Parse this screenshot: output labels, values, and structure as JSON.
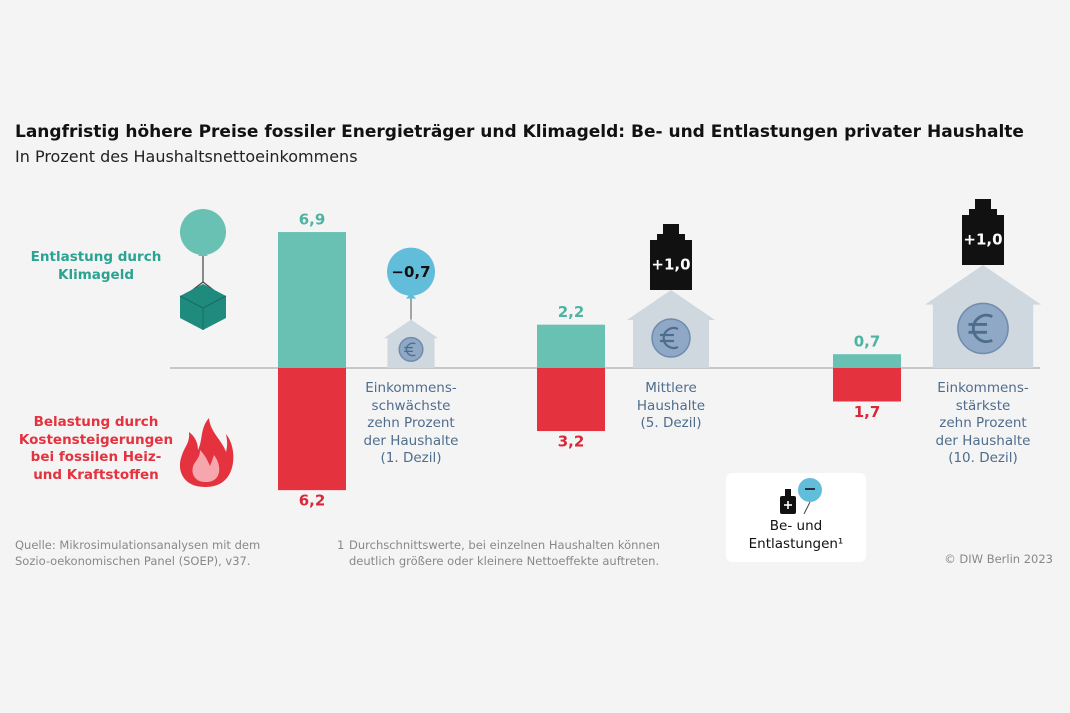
{
  "chart_data": {
    "type": "bar",
    "title": "Langfristig höhere Preise fossiler Energieträger und Klimageld: Be- und Entlastungen privater Haushalte",
    "subtitle": "In Prozent des Haushaltsnettoeinkommens",
    "categories": [
      "Einkommens-\nschwächste\nzehn Prozent\nder Haushalte\n(1. Dezil)",
      "Mittlere\nHaushalte\n(5. Dezil)",
      "Einkommens-\nstärkste\nzehn Prozent\nder Haushalte\n(10. Dezil)"
    ],
    "series": [
      {
        "name": "Entlastung durch\nKlimageld",
        "color": "#68c1b2",
        "values": [
          6.9,
          2.2,
          0.7
        ],
        "value_labels": [
          "6,9",
          "2,2",
          "0,7"
        ]
      },
      {
        "name": "Belastung durch\nKostensteigerungen\nbei fossilen Heiz-\nund Kraftstoffen",
        "color": "#e4323f",
        "values": [
          6.2,
          3.2,
          1.7
        ],
        "value_labels": [
          "6,2",
          "3,2",
          "1,7"
        ]
      }
    ],
    "net": {
      "name": "Be- und\nEntlastungen¹",
      "values": [
        -0.7,
        1.0,
        1.0
      ],
      "value_labels": [
        "−0,7",
        "+1,0",
        "+1,0"
      ]
    },
    "source": "Quelle: Mikrosimulationsanalysen mit dem\nSozio-oekonomischen Panel (SOEP), v37.",
    "footnote": {
      "marker": "1",
      "text": "Durchschnittswerte, bei einzelnen Haushalten können\ndeutlich größere oder kleinere Nettoeffekte auftreten."
    },
    "copyright": "© DIW Berlin 2023"
  }
}
